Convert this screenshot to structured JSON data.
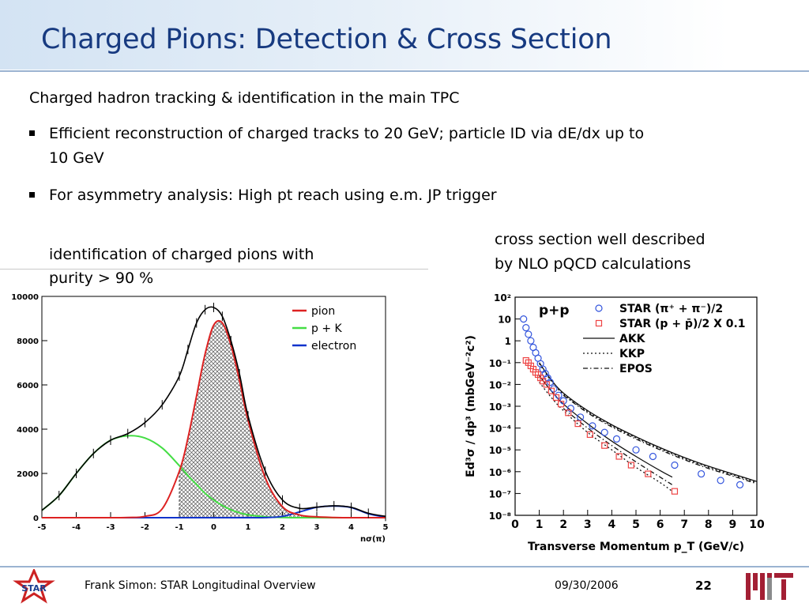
{
  "slide": {
    "title": "Charged Pions: Detection & Cross Section",
    "intro": "Charged hadron tracking & identification in the main TPC",
    "bullets": [
      "Efficient reconstruction of charged tracks to 20 GeV; particle ID via dE/dx up to",
      "10 GeV",
      "For asymmetry analysis: High pt reach using e.m. JP trigger"
    ],
    "caption_left": [
      "identification of charged pions with",
      "purity > 90 %"
    ],
    "caption_right": [
      "cross section well described",
      "by NLO pQCD calculations"
    ]
  },
  "footer": {
    "author": "Frank Simon: STAR Longitudinal Overview",
    "date": "09/30/2006",
    "page": "22",
    "star_logo_text": "STAR"
  },
  "colors": {
    "title": "#173a80",
    "pion": "#dd2222",
    "pK": "#44dd44",
    "electron": "#1133cc",
    "star_sym": "#3355dd",
    "star_pp": "#ee4444"
  },
  "chart_data": [
    {
      "type": "line",
      "xlabel": "nσ(π)",
      "ylabel": "",
      "xlim": [
        -5,
        5
      ],
      "ylim": [
        0,
        10000
      ],
      "xticks": [
        "-5",
        "-4",
        "-3",
        "-2",
        "-1",
        "0",
        "1",
        "2",
        "3",
        "4",
        "5"
      ],
      "yticks": [
        "0",
        "2000",
        "4000",
        "6000",
        "8000",
        "10000"
      ],
      "legend": [
        "pion",
        "p + K",
        "electron"
      ],
      "legend_position": "top-right",
      "shaded_region": {
        "series": "pion",
        "x_from": -1.0,
        "x_to": 5.0
      },
      "x": [
        -5,
        -4.5,
        -4,
        -3.5,
        -3,
        -2.5,
        -2,
        -1.5,
        -1,
        -0.75,
        -0.5,
        -0.25,
        0,
        0.25,
        0.5,
        0.75,
        1,
        1.5,
        2,
        2.5,
        3,
        3.5,
        4,
        4.5,
        5
      ],
      "series": [
        {
          "name": "pion",
          "values": [
            0,
            0,
            0,
            0,
            0,
            10,
            60,
            400,
            2100,
            3600,
            5500,
            7400,
            8700,
            8800,
            7800,
            6200,
            4400,
            1800,
            500,
            120,
            40,
            10,
            0,
            0,
            0
          ]
        },
        {
          "name": "p + K",
          "values": [
            330,
            1000,
            2000,
            2900,
            3500,
            3700,
            3600,
            3150,
            2350,
            1900,
            1500,
            1100,
            800,
            550,
            360,
            220,
            130,
            40,
            10,
            0,
            0,
            0,
            0,
            0,
            0
          ]
        },
        {
          "name": "electron",
          "values": [
            0,
            0,
            0,
            0,
            0,
            0,
            0,
            0,
            0,
            0,
            0,
            0,
            0,
            0,
            0,
            0,
            0,
            5,
            60,
            260,
            470,
            530,
            460,
            180,
            30
          ]
        },
        {
          "name": "data",
          "values": [
            330,
            1000,
            2000,
            2900,
            3500,
            3800,
            4300,
            5100,
            6400,
            7600,
            8800,
            9400,
            9500,
            9100,
            8000,
            6500,
            4600,
            2100,
            800,
            420,
            480,
            540,
            470,
            200,
            60
          ]
        }
      ]
    },
    {
      "type": "scatter",
      "title": "p+p",
      "xlabel": "Transverse Momentum p_T (GeV/c)",
      "ylabel": "Ed³σ / dp³ (mbGeV⁻²c²)",
      "xlim": [
        0,
        10
      ],
      "ylim_log10": [
        -8,
        2
      ],
      "log_y": true,
      "xticks": [
        "0",
        "1",
        "2",
        "3",
        "4",
        "5",
        "6",
        "7",
        "8",
        "9",
        "10"
      ],
      "yticks": [
        "10²",
        "10",
        "1",
        "10⁻¹",
        "10⁻²",
        "10⁻³",
        "10⁻⁴",
        "10⁻⁵",
        "10⁻⁶",
        "10⁻⁷",
        "10⁻⁸"
      ],
      "legend": [
        "STAR (π⁺ + π⁻)/2",
        "STAR (p + p̄)/2 X 0.1",
        "AKK",
        "KKP",
        "EPOS"
      ],
      "legend_position": "top-right",
      "series": [
        {
          "name": "STAR (π⁺ + π⁻)/2",
          "marker": "circle",
          "x": [
            0.35,
            0.45,
            0.55,
            0.65,
            0.75,
            0.85,
            0.95,
            1.05,
            1.15,
            1.25,
            1.35,
            1.45,
            1.6,
            1.8,
            2.0,
            2.3,
            2.7,
            3.2,
            3.7,
            4.2,
            5.0,
            5.7,
            6.6,
            7.7,
            8.5,
            9.3
          ],
          "log10_y": [
            1.0,
            0.6,
            0.3,
            0.0,
            -0.3,
            -0.55,
            -0.8,
            -1.05,
            -1.3,
            -1.5,
            -1.7,
            -1.9,
            -2.2,
            -2.5,
            -2.75,
            -3.1,
            -3.5,
            -3.9,
            -4.2,
            -4.5,
            -5.0,
            -5.3,
            -5.7,
            -6.1,
            -6.4,
            -6.6
          ]
        },
        {
          "name": "STAR (p + p̄)/2 X 0.1",
          "marker": "square",
          "x": [
            0.45,
            0.55,
            0.65,
            0.75,
            0.85,
            0.95,
            1.05,
            1.15,
            1.3,
            1.5,
            1.7,
            1.9,
            2.2,
            2.6,
            3.1,
            3.7,
            4.3,
            4.8,
            5.5,
            6.6
          ],
          "log10_y": [
            -0.9,
            -1.0,
            -1.15,
            -1.3,
            -1.45,
            -1.55,
            -1.7,
            -1.85,
            -2.0,
            -2.3,
            -2.6,
            -2.9,
            -3.3,
            -3.8,
            -4.3,
            -4.8,
            -5.3,
            -5.7,
            -6.1,
            -6.9
          ]
        },
        {
          "name": "AKK",
          "style": "solid",
          "x": [
            1.0,
            1.5,
            2,
            3,
            4,
            5,
            6,
            7,
            8,
            9,
            10
          ],
          "log10_y": [
            -1.0,
            -1.8,
            -2.4,
            -3.2,
            -3.85,
            -4.4,
            -4.9,
            -5.35,
            -5.75,
            -6.1,
            -6.45
          ]
        },
        {
          "name": "AKK (p)",
          "style": "solid",
          "x": [
            1.0,
            1.5,
            2,
            3,
            4,
            5,
            6,
            6.5
          ],
          "log10_y": [
            -1.6,
            -2.3,
            -2.9,
            -3.8,
            -4.6,
            -5.3,
            -5.95,
            -6.25
          ]
        },
        {
          "name": "KKP",
          "style": "dotted",
          "x": [
            1.0,
            1.5,
            2,
            3,
            4,
            5,
            6,
            7,
            8,
            9,
            10
          ],
          "log10_y": [
            -1.05,
            -1.85,
            -2.45,
            -3.25,
            -3.9,
            -4.45,
            -4.95,
            -5.4,
            -5.8,
            -6.15,
            -6.5
          ]
        },
        {
          "name": "KKP (p)",
          "style": "dotted",
          "x": [
            1.0,
            1.5,
            2,
            3,
            4,
            5,
            6,
            6.5
          ],
          "log10_y": [
            -1.9,
            -2.6,
            -3.2,
            -4.2,
            -5.0,
            -5.8,
            -6.5,
            -6.9
          ]
        },
        {
          "name": "EPOS",
          "style": "dashdot",
          "x": [
            2,
            3,
            4,
            5,
            6,
            7,
            8,
            9,
            10
          ],
          "log10_y": [
            -2.5,
            -3.3,
            -3.95,
            -4.5,
            -5.0,
            -5.45,
            -5.85,
            -6.2,
            -6.55
          ]
        },
        {
          "name": "EPOS (p)",
          "style": "dashdot",
          "x": [
            2,
            3,
            4,
            5,
            6,
            6.5
          ],
          "log10_y": [
            -3.1,
            -4.0,
            -4.8,
            -5.55,
            -6.25,
            -6.6
          ]
        }
      ]
    }
  ]
}
